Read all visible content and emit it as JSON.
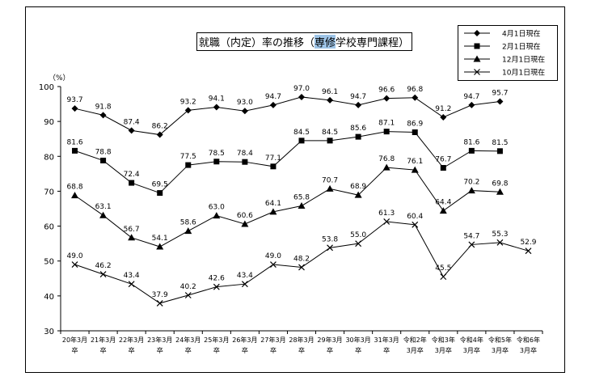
{
  "chart_data": {
    "type": "line",
    "title": "就職（内定）率の推移（専修学校専門課程）",
    "title_highlight": "専修",
    "ylabel": "（%）",
    "ylim": [
      30,
      100
    ],
    "yticks": [
      30,
      40,
      50,
      60,
      70,
      80,
      90,
      100
    ],
    "grid": false,
    "legend_position": "top-right",
    "categories": [
      [
        "20年3月",
        "卒"
      ],
      [
        "21年3月",
        "卒"
      ],
      [
        "22年3月",
        "卒"
      ],
      [
        "23年3月",
        "卒"
      ],
      [
        "24年3月",
        "卒"
      ],
      [
        "25年3月",
        "卒"
      ],
      [
        "26年3月",
        "卒"
      ],
      [
        "27年3月",
        "卒"
      ],
      [
        "28年3月",
        "卒"
      ],
      [
        "29年3月",
        "卒"
      ],
      [
        "30年3月",
        "卒"
      ],
      [
        "31年3月",
        "卒"
      ],
      [
        "令和2年",
        "3月卒"
      ],
      [
        "令和3年",
        "3月卒"
      ],
      [
        "令和4年",
        "3月卒"
      ],
      [
        "令和5年",
        "3月卒"
      ],
      [
        "令和6年",
        "3月卒"
      ]
    ],
    "series": [
      {
        "name": "4月1日現在",
        "marker": "diamond",
        "values": [
          93.7,
          91.8,
          87.4,
          86.2,
          93.2,
          94.1,
          93.0,
          94.7,
          97.0,
          96.1,
          94.7,
          96.6,
          96.8,
          91.2,
          94.7,
          95.7,
          null
        ]
      },
      {
        "name": "2月1日現在",
        "marker": "square",
        "values": [
          81.6,
          78.8,
          72.4,
          69.5,
          77.5,
          78.5,
          78.4,
          77.1,
          84.5,
          84.5,
          85.6,
          87.1,
          86.9,
          76.7,
          81.6,
          81.5,
          null
        ]
      },
      {
        "name": "12月1日現在",
        "marker": "triangle",
        "values": [
          68.8,
          63.1,
          56.7,
          54.1,
          58.6,
          63.0,
          60.6,
          64.1,
          65.8,
          70.7,
          68.9,
          76.8,
          76.1,
          64.4,
          70.2,
          69.8,
          null
        ]
      },
      {
        "name": "10月1日現在",
        "marker": "x",
        "values": [
          49.0,
          46.2,
          43.4,
          37.9,
          40.2,
          42.6,
          43.4,
          49.0,
          48.2,
          53.8,
          55.0,
          61.3,
          60.4,
          45.5,
          54.7,
          55.3,
          52.9
        ]
      }
    ]
  }
}
